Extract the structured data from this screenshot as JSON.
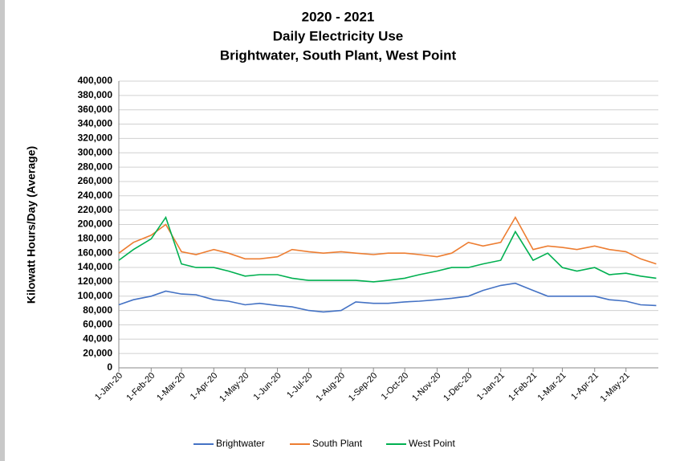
{
  "chart_data": {
    "type": "line",
    "title": "2020 - 2021",
    "subtitle": "Daily Electricity Use",
    "subtitle2": "Brightwater, South Plant, West Point",
    "ylabel": "Kilowatt Hours/Day (Average)",
    "x": [
      "2020-01-01",
      "2020-01-15",
      "2020-02-01",
      "2020-02-15",
      "2020-03-01",
      "2020-03-15",
      "2020-04-01",
      "2020-04-15",
      "2020-05-01",
      "2020-05-15",
      "2020-06-01",
      "2020-06-15",
      "2020-07-01",
      "2020-07-15",
      "2020-08-01",
      "2020-08-15",
      "2020-09-01",
      "2020-09-15",
      "2020-10-01",
      "2020-10-15",
      "2020-11-01",
      "2020-11-15",
      "2020-12-01",
      "2020-12-15",
      "2021-01-01",
      "2021-01-15",
      "2021-02-01",
      "2021-02-15",
      "2021-03-01",
      "2021-03-15",
      "2021-04-01",
      "2021-04-15",
      "2021-05-01",
      "2021-05-15",
      "2021-05-30"
    ],
    "series": [
      {
        "name": "Brightwater",
        "color": "#4472c4",
        "values": [
          88000,
          95000,
          100000,
          107000,
          103000,
          102000,
          95000,
          93000,
          88000,
          90000,
          87000,
          85000,
          80000,
          78000,
          80000,
          92000,
          90000,
          90000,
          92000,
          93000,
          95000,
          97000,
          100000,
          108000,
          115000,
          118000,
          108000,
          100000,
          100000,
          100000,
          100000,
          95000,
          93000,
          88000,
          87000
        ]
      },
      {
        "name": "South Plant",
        "color": "#ed7d31",
        "values": [
          160000,
          175000,
          185000,
          200000,
          162000,
          158000,
          165000,
          160000,
          152000,
          152000,
          155000,
          165000,
          162000,
          160000,
          162000,
          160000,
          158000,
          160000,
          160000,
          158000,
          155000,
          160000,
          175000,
          170000,
          175000,
          210000,
          165000,
          170000,
          168000,
          165000,
          170000,
          165000,
          162000,
          152000,
          145000
        ]
      },
      {
        "name": "West Point",
        "color": "#00b050",
        "values": [
          150000,
          165000,
          180000,
          210000,
          145000,
          140000,
          140000,
          135000,
          128000,
          130000,
          130000,
          125000,
          122000,
          122000,
          122000,
          122000,
          120000,
          122000,
          125000,
          130000,
          135000,
          140000,
          140000,
          145000,
          150000,
          190000,
          150000,
          160000,
          140000,
          135000,
          140000,
          130000,
          132000,
          128000,
          125000
        ]
      }
    ],
    "xlim": [
      "2020-01-01",
      "2021-06-01"
    ],
    "xticks": [
      {
        "value": "2020-01-01",
        "label": "1-Jan-20"
      },
      {
        "value": "2020-02-01",
        "label": "1-Feb-20"
      },
      {
        "value": "2020-03-01",
        "label": "1-Mar-20"
      },
      {
        "value": "2020-04-01",
        "label": "1-Apr-20"
      },
      {
        "value": "2020-05-01",
        "label": "1-May-20"
      },
      {
        "value": "2020-06-01",
        "label": "1-Jun-20"
      },
      {
        "value": "2020-07-01",
        "label": "1-Jul-20"
      },
      {
        "value": "2020-08-01",
        "label": "1-Aug-20"
      },
      {
        "value": "2020-09-01",
        "label": "1-Sep-20"
      },
      {
        "value": "2020-10-01",
        "label": "1-Oct-20"
      },
      {
        "value": "2020-11-01",
        "label": "1-Nov-20"
      },
      {
        "value": "2020-12-01",
        "label": "1-Dec-20"
      },
      {
        "value": "2021-01-01",
        "label": "1-Jan-21"
      },
      {
        "value": "2021-02-01",
        "label": "1-Feb-21"
      },
      {
        "value": "2021-03-01",
        "label": "1-Mar-21"
      },
      {
        "value": "2021-04-01",
        "label": "1-Apr-21"
      },
      {
        "value": "2021-05-01",
        "label": "1-May-21"
      }
    ],
    "ylim": [
      0,
      400000
    ],
    "yticks": [
      0,
      {
        "value": 20000,
        "label": "20,000"
      },
      {
        "value": 40000,
        "label": "40,000"
      },
      {
        "value": 60000,
        "label": "60,000"
      },
      {
        "value": 80000,
        "label": "80,000"
      },
      {
        "value": 100000,
        "label": "100,000"
      },
      {
        "value": 120000,
        "label": "120,000"
      },
      {
        "value": 140000,
        "label": "140,000"
      },
      {
        "value": 160000,
        "label": "160,000"
      },
      {
        "value": 180000,
        "label": "180,000"
      },
      {
        "value": 200000,
        "label": "200,000"
      },
      {
        "value": 220000,
        "label": "220,000"
      },
      {
        "value": 240000,
        "label": "240,000"
      },
      {
        "value": 260000,
        "label": "260,000"
      },
      {
        "value": 280000,
        "label": "280,000"
      },
      {
        "value": 300000,
        "label": "300,000"
      },
      {
        "value": 320000,
        "label": "320,000"
      },
      {
        "value": 340000,
        "label": "340,000"
      },
      {
        "value": 360000,
        "label": "360,000"
      },
      {
        "value": 380000,
        "label": "380,000"
      },
      {
        "value": 400000,
        "label": "400,000"
      }
    ],
    "grid": true,
    "legend": "bottom"
  }
}
